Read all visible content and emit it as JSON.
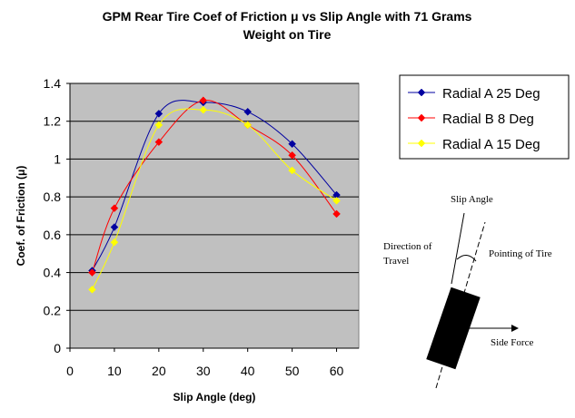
{
  "chart_data": {
    "type": "line",
    "title": "GPM Rear Tire Coef of Friction μ vs Slip Angle with 71 Grams",
    "subtitle": "Weight on Tire",
    "xlabel": "Slip Angle (deg)",
    "ylabel": "Coef. of Friction (μ)",
    "xlim": [
      0,
      65
    ],
    "ylim": [
      0,
      1.4
    ],
    "xticks": [
      "0",
      "10",
      "20",
      "30",
      "40",
      "50",
      "60"
    ],
    "yticks": [
      "0",
      "0.2",
      "0.4",
      "0.6",
      "0.8",
      "1",
      "1.2",
      "1.4"
    ],
    "grid": true,
    "legend_position": "right",
    "x": [
      5,
      10,
      20,
      30,
      40,
      50,
      60
    ],
    "series": [
      {
        "name": "Radial A 25 Deg",
        "color": "#0000a0",
        "marker": "diamond",
        "values": [
          0.41,
          0.64,
          1.24,
          1.3,
          1.25,
          1.08,
          0.81
        ]
      },
      {
        "name": "Radial B 8 Deg",
        "color": "#ff0000",
        "marker": "diamond",
        "values": [
          0.4,
          0.74,
          1.09,
          1.31,
          1.18,
          1.02,
          0.71
        ]
      },
      {
        "name": "Radial A 15 Deg",
        "color": "#ffff00",
        "marker": "diamond",
        "values": [
          0.31,
          0.56,
          1.18,
          1.26,
          1.18,
          0.94,
          0.78
        ]
      }
    ],
    "colors": {
      "plot_background": "#c0c0c0",
      "gridline": "#000000"
    }
  },
  "diagram": {
    "slip_angle": "Slip Angle",
    "direction_line1": "Direction of",
    "direction_line2": "Travel",
    "pointing": "Pointing of Tire",
    "side_force": "Side Force"
  }
}
